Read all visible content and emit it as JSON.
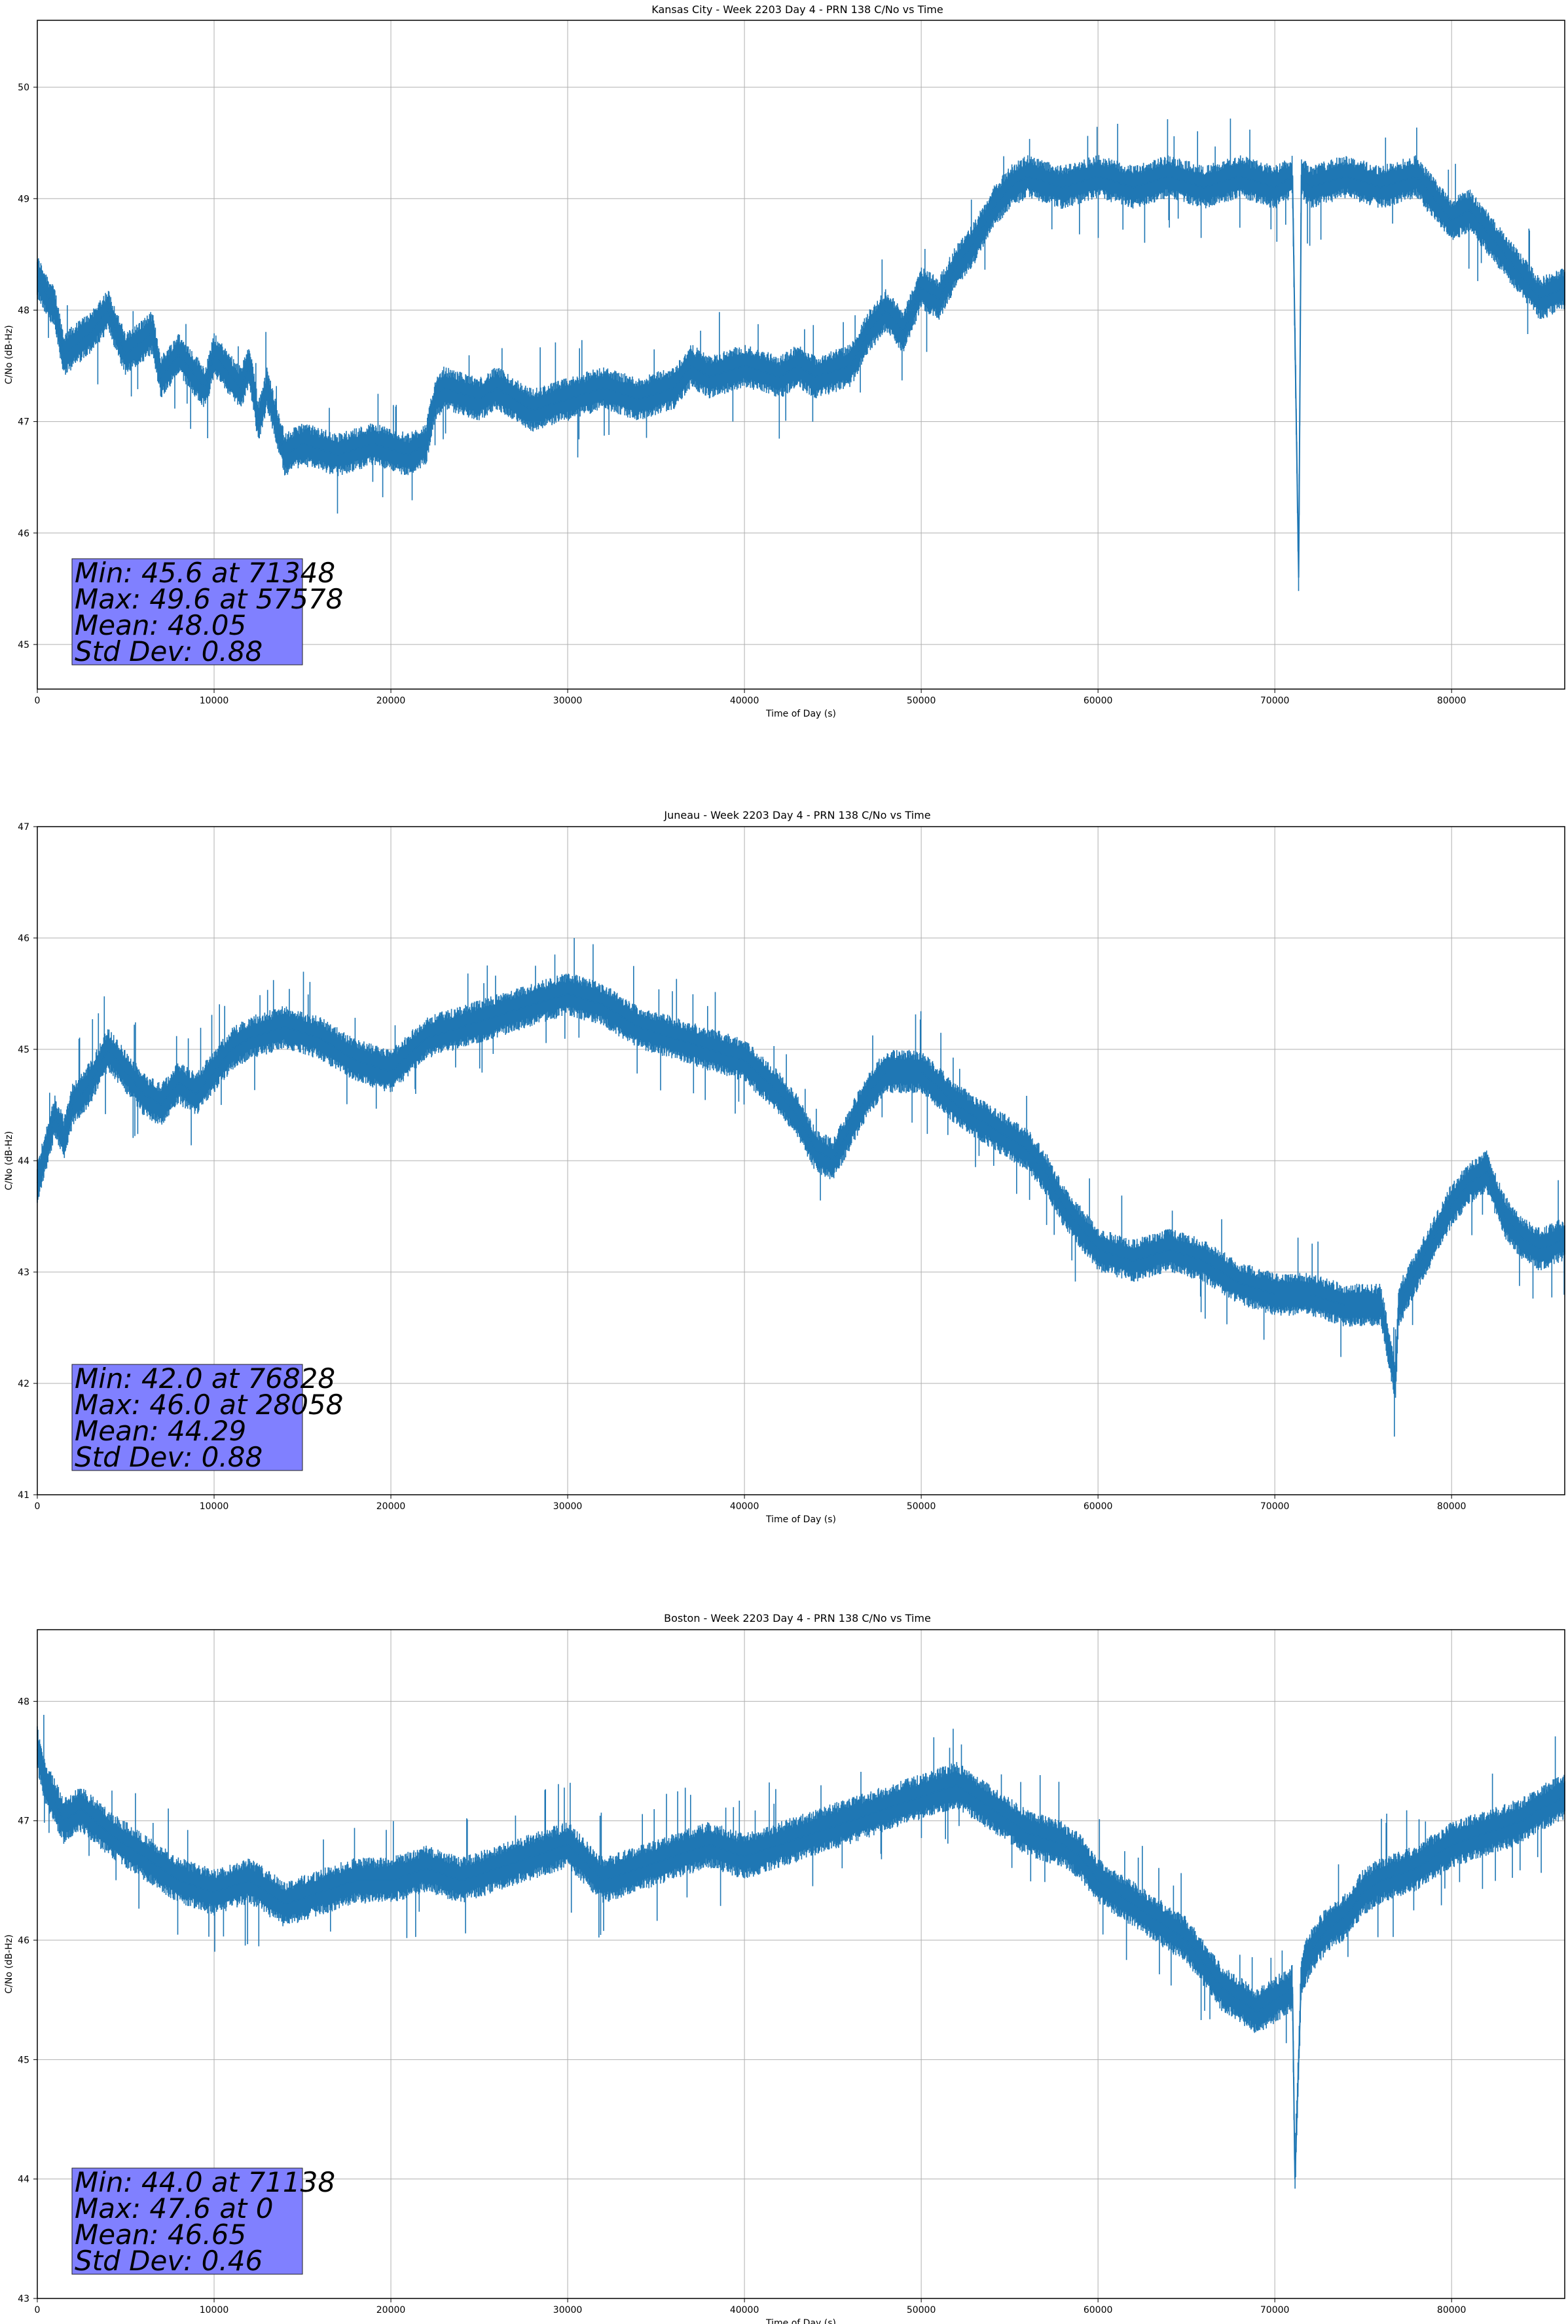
{
  "colors": {
    "line": "#1f77b4",
    "statbox": "#8080ff",
    "grid": "#b0b0b0"
  },
  "chart_data": [
    {
      "type": "line",
      "title": "Kansas City - Week 2203 Day 4 - PRN 138 C/No vs Time",
      "xlabel": "Time of Day (s)",
      "ylabel": "C/No (dB-Hz)",
      "xlim": [
        0,
        86400
      ],
      "ylim": [
        44.6,
        50.6
      ],
      "xticks": [
        0,
        10000,
        20000,
        30000,
        40000,
        50000,
        60000,
        70000,
        80000
      ],
      "yticks": [
        45,
        46,
        47,
        48,
        49,
        50
      ],
      "grid": true,
      "series": [
        {
          "x": [
            0,
            1000,
            1500,
            3000,
            4000,
            5000,
            6500,
            7000,
            8000,
            9500,
            10000,
            10500,
            11500,
            12000,
            12500,
            13000,
            14000,
            15000,
            17000,
            19000,
            21000,
            22000,
            22500,
            23000,
            25000,
            26000,
            28000,
            30000,
            32000,
            34000,
            36000,
            37000,
            38000,
            40000,
            42000,
            43000,
            44000,
            46000,
            47000,
            48000,
            49000,
            50000,
            51000,
            52000,
            53000,
            54000,
            55000,
            56000,
            58000,
            60000,
            62000,
            64000,
            66000,
            68000,
            70000,
            71000,
            71348,
            71500,
            72000,
            74000,
            76000,
            78000,
            79000,
            80000,
            81000,
            82000,
            83000,
            84000,
            85000,
            86400
          ],
          "y": [
            48.3,
            48.0,
            47.6,
            47.8,
            48.0,
            47.6,
            47.8,
            47.4,
            47.6,
            47.3,
            47.6,
            47.5,
            47.3,
            47.5,
            47.0,
            47.3,
            46.7,
            46.8,
            46.7,
            46.8,
            46.7,
            46.8,
            47.2,
            47.3,
            47.2,
            47.3,
            47.1,
            47.2,
            47.3,
            47.2,
            47.3,
            47.5,
            47.4,
            47.5,
            47.4,
            47.5,
            47.4,
            47.5,
            47.8,
            48.0,
            47.8,
            48.2,
            48.1,
            48.4,
            48.6,
            48.9,
            49.1,
            49.2,
            49.1,
            49.2,
            49.1,
            49.2,
            49.1,
            49.2,
            49.1,
            49.2,
            45.6,
            49.2,
            49.1,
            49.2,
            49.1,
            49.2,
            49.0,
            48.8,
            48.9,
            48.7,
            48.5,
            48.3,
            48.1,
            48.2
          ],
          "band_halfwidth": 0.15
        }
      ],
      "stats": {
        "min": "Min: 45.6 at 71348",
        "max": "Max: 49.6 at 57578",
        "mean": "Mean: 48.05",
        "std": "Std Dev: 0.88"
      }
    },
    {
      "type": "line",
      "title": "Juneau - Week 2203 Day 4 - PRN 138 C/No vs Time",
      "xlabel": "Time of Day (s)",
      "ylabel": "C/No (dB-Hz)",
      "xlim": [
        0,
        86400
      ],
      "ylim": [
        41,
        47
      ],
      "xticks": [
        0,
        10000,
        20000,
        30000,
        40000,
        50000,
        60000,
        70000,
        80000
      ],
      "yticks": [
        41,
        42,
        43,
        44,
        45,
        46,
        47
      ],
      "grid": true,
      "series": [
        {
          "x": [
            0,
            500,
            1000,
            1500,
            2000,
            3000,
            4000,
            5000,
            6000,
            7000,
            8000,
            9000,
            10000,
            11000,
            12000,
            14000,
            16000,
            18000,
            20000,
            22000,
            24000,
            26000,
            28000,
            30000,
            32000,
            34000,
            36000,
            38000,
            40000,
            42000,
            43000,
            44000,
            45000,
            46000,
            47000,
            48000,
            50000,
            52000,
            54000,
            55000,
            56000,
            57000,
            58000,
            59000,
            60000,
            62000,
            64000,
            66000,
            68000,
            70000,
            72000,
            74000,
            76000,
            76828,
            77000,
            78000,
            79000,
            80000,
            81000,
            82000,
            83000,
            84000,
            85000,
            86400
          ],
          "y": [
            43.8,
            44.1,
            44.4,
            44.2,
            44.5,
            44.7,
            45.0,
            44.8,
            44.6,
            44.5,
            44.7,
            44.6,
            44.8,
            45.0,
            45.1,
            45.2,
            45.1,
            44.9,
            44.8,
            45.1,
            45.2,
            45.3,
            45.4,
            45.5,
            45.4,
            45.2,
            45.1,
            45.0,
            44.9,
            44.6,
            44.4,
            44.1,
            44.0,
            44.3,
            44.6,
            44.8,
            44.8,
            44.5,
            44.3,
            44.2,
            44.1,
            43.9,
            43.6,
            43.4,
            43.2,
            43.1,
            43.2,
            43.1,
            42.9,
            42.8,
            42.8,
            42.7,
            42.7,
            42.0,
            42.7,
            43.0,
            43.3,
            43.6,
            43.8,
            43.9,
            43.5,
            43.3,
            43.2,
            43.3
          ],
          "band_halfwidth": 0.15
        }
      ],
      "stats": {
        "min": "Min: 42.0 at 76828",
        "max": "Max: 46.0 at 28058",
        "mean": "Mean: 44.29",
        "std": "Std Dev: 0.88"
      }
    },
    {
      "type": "line",
      "title": "Boston - Week 2203 Day 4 - PRN 138 C/No vs Time",
      "xlabel": "Time of Day (s)",
      "ylabel": "C/No (dB-Hz)",
      "xlim": [
        0,
        86400
      ],
      "ylim": [
        43,
        48.6
      ],
      "xticks": [
        0,
        10000,
        20000,
        30000,
        40000,
        50000,
        60000,
        70000,
        80000
      ],
      "yticks": [
        43,
        44,
        45,
        46,
        47,
        48
      ],
      "grid": true,
      "series": [
        {
          "x": [
            0,
            500,
            1500,
            2500,
            4000,
            6000,
            8000,
            10000,
            12000,
            14000,
            16000,
            18000,
            20000,
            22000,
            24000,
            26000,
            28000,
            30000,
            32000,
            34000,
            36000,
            38000,
            40000,
            42000,
            44000,
            46000,
            48000,
            50000,
            52000,
            54000,
            56000,
            58000,
            59000,
            60000,
            62000,
            64000,
            65000,
            66000,
            67000,
            68000,
            69000,
            70000,
            71000,
            71138,
            71500,
            72000,
            73000,
            74000,
            75000,
            76000,
            78000,
            80000,
            82000,
            84000,
            85000,
            86400
          ],
          "y": [
            47.6,
            47.3,
            47.0,
            47.1,
            46.9,
            46.7,
            46.5,
            46.4,
            46.5,
            46.3,
            46.4,
            46.5,
            46.5,
            46.6,
            46.5,
            46.6,
            46.7,
            46.8,
            46.5,
            46.6,
            46.7,
            46.8,
            46.7,
            46.8,
            46.9,
            47.0,
            47.1,
            47.2,
            47.3,
            47.1,
            46.9,
            46.8,
            46.7,
            46.5,
            46.3,
            46.1,
            46.0,
            45.8,
            45.6,
            45.5,
            45.4,
            45.5,
            45.6,
            44.0,
            45.7,
            45.9,
            46.1,
            46.2,
            46.4,
            46.5,
            46.6,
            46.8,
            46.9,
            47.0,
            47.1,
            47.2
          ],
          "band_halfwidth": 0.15
        }
      ],
      "stats": {
        "min": "Min: 44.0 at 71138",
        "max": "Max: 47.6 at 0",
        "mean": "Mean: 46.65",
        "std": "Std Dev: 0.46"
      }
    }
  ]
}
